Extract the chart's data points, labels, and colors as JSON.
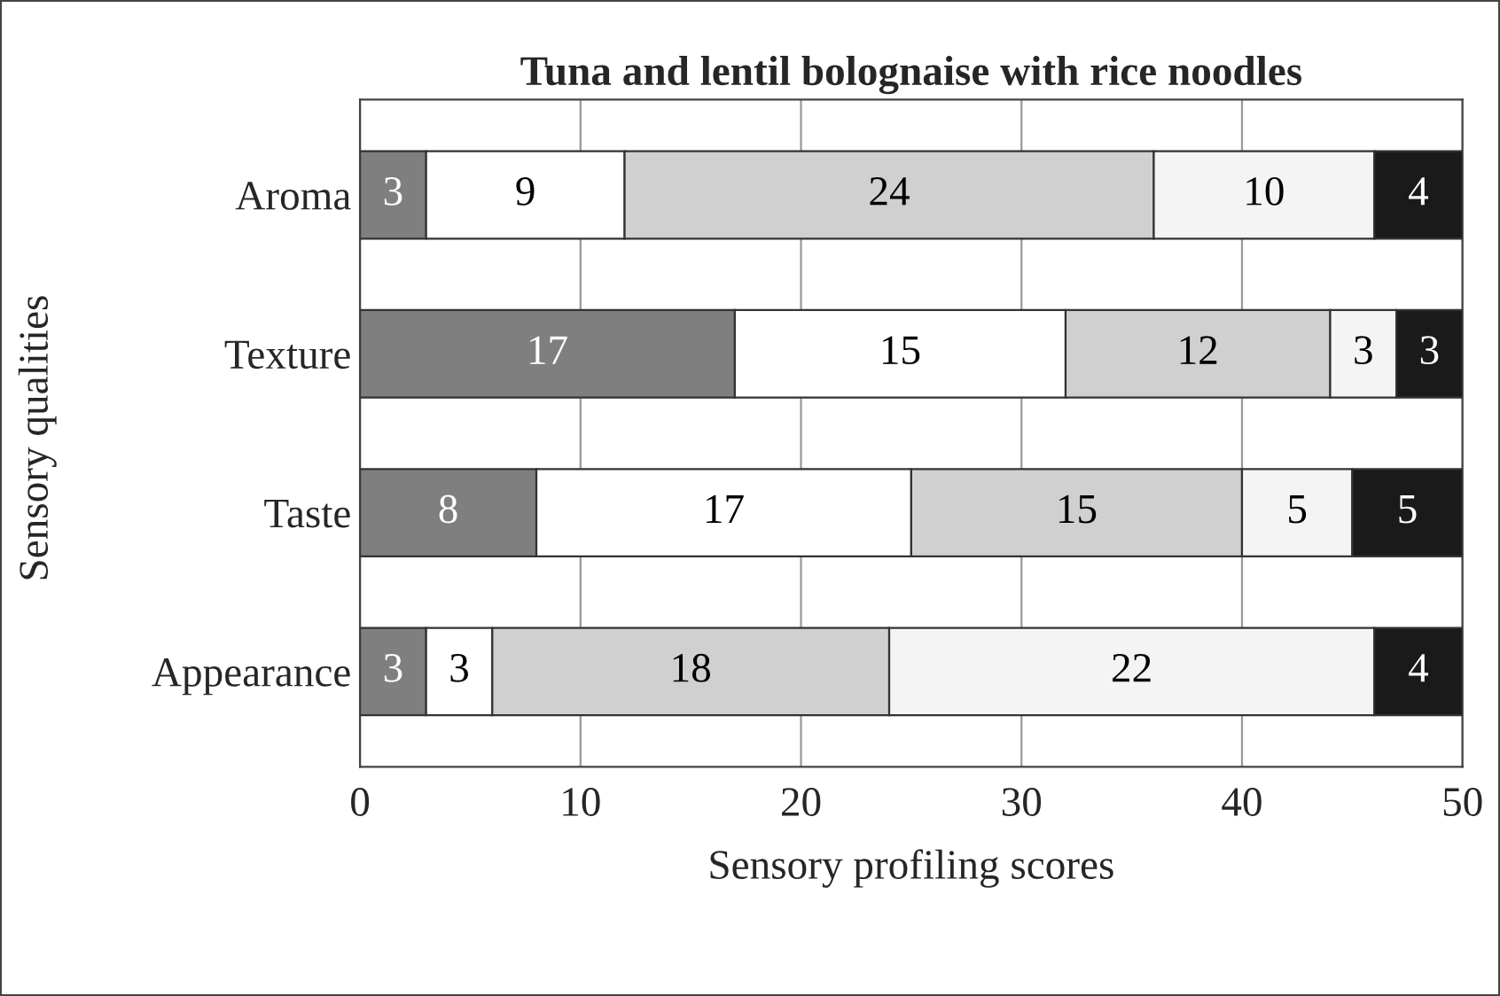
{
  "chart_data": {
    "type": "bar",
    "orientation": "horizontal",
    "stacked": true,
    "title": "Tuna and lentil bolognaise with rice noodles",
    "xlabel": "Sensory profiling scores",
    "ylabel": "Sensory qualities",
    "categories": [
      "Aroma",
      "Texture",
      "Taste",
      "Appearance"
    ],
    "series": [
      {
        "color": "#7f7f7f",
        "values": [
          3,
          17,
          8,
          3
        ]
      },
      {
        "color": "#ffffff",
        "values": [
          9,
          15,
          17,
          3
        ]
      },
      {
        "color": "#d0d0d0",
        "values": [
          24,
          12,
          15,
          18
        ]
      },
      {
        "color": "#f4f4f4",
        "values": [
          10,
          3,
          5,
          22
        ]
      },
      {
        "color": "#1a1a1a",
        "values": [
          4,
          3,
          5,
          4
        ]
      }
    ],
    "xlim": [
      0,
      50
    ],
    "xticks": [
      0,
      10,
      20,
      30,
      40,
      50
    ],
    "grid": "x",
    "data_labels": true
  }
}
